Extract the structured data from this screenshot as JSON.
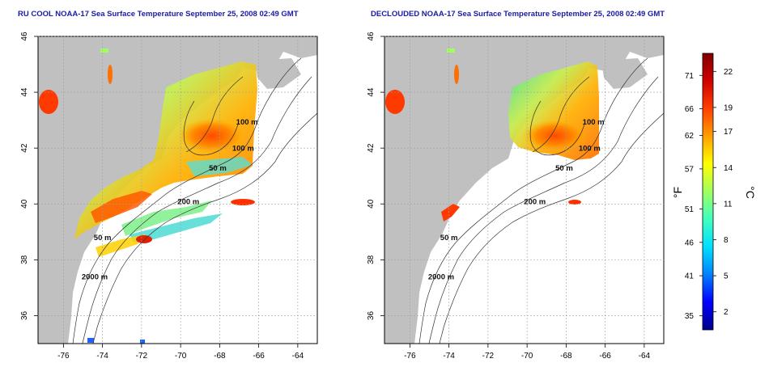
{
  "panels": [
    {
      "title": "RU COOL NOAA-17 Sea Surface Temperature September 25, 2008 02:49 GMT"
    },
    {
      "title": "DECLOUDED NOAA-17 Sea Surface Temperature September 25, 2008 02:49 GMT"
    }
  ],
  "axes": {
    "x_ticks": [
      "-76",
      "-74",
      "-72",
      "-70",
      "-68",
      "-66",
      "-64"
    ],
    "x_values": [
      -76,
      -74,
      -72,
      -70,
      -68,
      -66,
      -64
    ],
    "y_ticks": [
      "36",
      "38",
      "40",
      "42",
      "44",
      "46"
    ],
    "y_values": [
      36,
      38,
      40,
      42,
      44,
      46
    ],
    "lon_range": [
      -77.3,
      -63.0
    ],
    "lat_range": [
      35.0,
      46.0
    ],
    "grid": true
  },
  "contour_labels": [
    {
      "text": "100 m",
      "lon": -66.6,
      "lat": 42.85
    },
    {
      "text": "100 m",
      "lon": -66.8,
      "lat": 41.9
    },
    {
      "text": "50 m",
      "lon": -68.1,
      "lat": 41.2
    },
    {
      "text": "200 m",
      "lon": -69.6,
      "lat": 40.0
    },
    {
      "text": "50 m",
      "lon": -74.0,
      "lat": 38.7
    },
    {
      "text": "2000 m",
      "lon": -74.4,
      "lat": 37.3
    }
  ],
  "colorbar": {
    "f_label": "°F",
    "c_label": "°C",
    "f_ticks": [
      "71",
      "66",
      "62",
      "57",
      "51",
      "46",
      "41",
      "35"
    ],
    "c_ticks": [
      "22",
      "19",
      "17",
      "14",
      "11",
      "8",
      "5",
      "2"
    ],
    "c_values": [
      22,
      19,
      17,
      14,
      11,
      8,
      5,
      2
    ],
    "f_values": [
      71,
      66,
      62,
      57,
      51,
      46,
      41,
      35
    ],
    "c_range": [
      0.5,
      23.5
    ],
    "colors": [
      "#00008b",
      "#0000ff",
      "#0080ff",
      "#00e0ff",
      "#40ffc0",
      "#a0ff60",
      "#ffff00",
      "#ffa000",
      "#ff4000",
      "#d00000",
      "#800000"
    ]
  },
  "colors": {
    "land": "#c0c0c0",
    "title": "#1a1aa6",
    "grid": "#a0a0a0"
  }
}
